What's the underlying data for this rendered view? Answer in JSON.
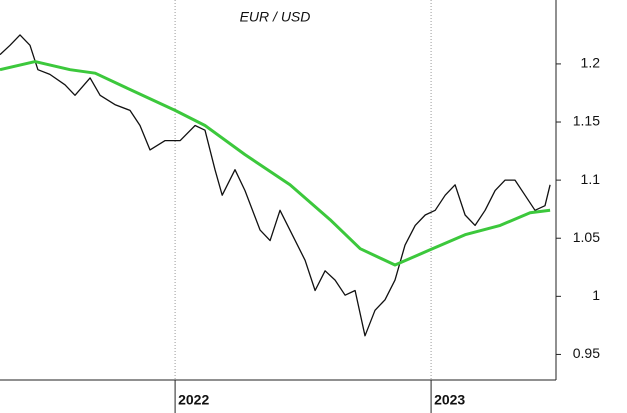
{
  "chart_data": {
    "type": "line",
    "title": "EUR / USD",
    "xlim": [
      2021.316,
      2023.488
    ],
    "xticks": [
      {
        "value": 2022,
        "label": "2022"
      },
      {
        "value": 2023,
        "label": "2023"
      }
    ],
    "ylim": [
      0.928,
      1.255
    ],
    "yticks": [
      0.95,
      1.0,
      1.05,
      1.1,
      1.15,
      1.2
    ],
    "x_grid": true,
    "series": [
      {
        "color": "#111111",
        "x": [
          2021.316,
          2021.355,
          2021.394,
          2021.433,
          2021.464,
          2021.511,
          2021.57,
          2021.609,
          2021.668,
          2021.707,
          2021.765,
          2021.824,
          2021.863,
          2021.902,
          2021.961,
          2022.02,
          2022.078,
          2022.117,
          2022.156,
          2022.184,
          2022.234,
          2022.273,
          2022.332,
          2022.371,
          2022.41,
          2022.469,
          2022.508,
          2022.547,
          2022.586,
          2022.625,
          2022.664,
          2022.703,
          2022.742,
          2022.781,
          2022.82,
          2022.859,
          2022.898,
          2022.938,
          2022.977,
          2023.016,
          2023.055,
          2023.094,
          2023.133,
          2023.172,
          2023.211,
          2023.25,
          2023.289,
          2023.328,
          2023.367,
          2023.406,
          2023.445,
          2023.465
        ],
        "values": [
          1.208,
          1.216,
          1.225,
          1.216,
          1.195,
          1.191,
          1.182,
          1.173,
          1.188,
          1.173,
          1.165,
          1.16,
          1.147,
          1.126,
          1.134,
          1.134,
          1.147,
          1.143,
          1.109,
          1.087,
          1.109,
          1.091,
          1.057,
          1.048,
          1.074,
          1.048,
          1.031,
          1.005,
          1.022,
          1.014,
          1.001,
          1.005,
          0.966,
          0.988,
          0.997,
          1.014,
          1.044,
          1.061,
          1.07,
          1.074,
          1.087,
          1.096,
          1.07,
          1.061,
          1.074,
          1.091,
          1.1,
          1.1,
          1.087,
          1.074,
          1.078,
          1.096
        ]
      },
      {
        "color": "#3cc83c",
        "x": [
          2021.316,
          2021.453,
          2021.59,
          2021.688,
          2021.824,
          2022.0,
          2022.117,
          2022.273,
          2022.449,
          2022.605,
          2022.723,
          2022.859,
          2022.996,
          2023.133,
          2023.27,
          2023.387,
          2023.465
        ],
        "values": [
          1.195,
          1.202,
          1.195,
          1.192,
          1.178,
          1.16,
          1.147,
          1.122,
          1.096,
          1.066,
          1.041,
          1.027,
          1.04,
          1.053,
          1.061,
          1.072,
          1.074
        ]
      }
    ]
  }
}
